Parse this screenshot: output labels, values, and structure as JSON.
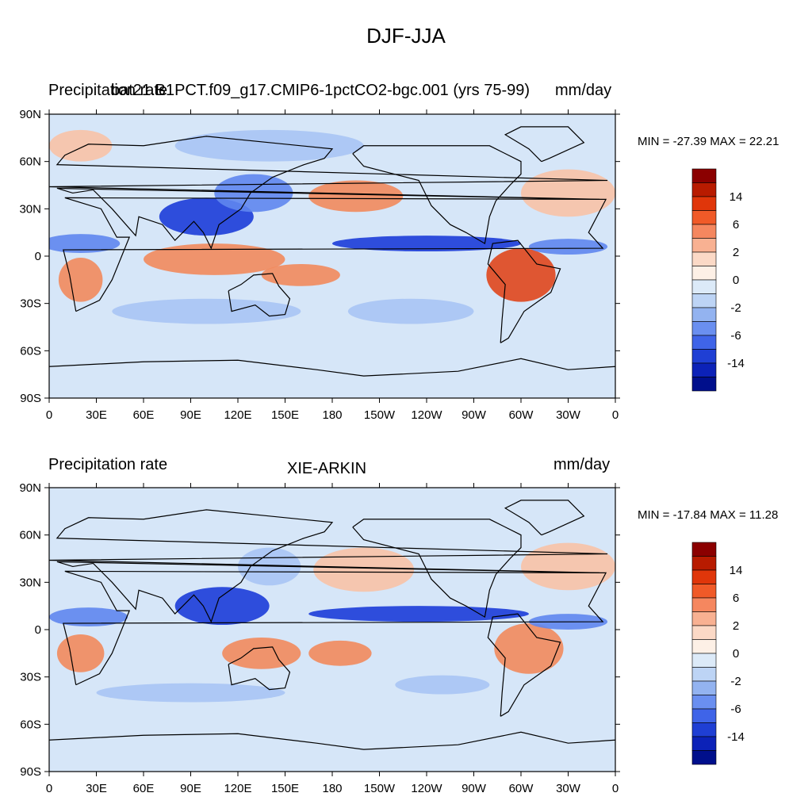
{
  "page": {
    "title": "DJF-JJA"
  },
  "panels": [
    {
      "left_title": "Precipitation rate",
      "center_title": "bat21.B1PCT.f09_g17.CMIP6-1pctCO2-bgc.001 (yrs 75-99)",
      "right_title": "mm/day",
      "minmax": "MIN = -27.39 MAX =  22.21",
      "lat_ticks": [
        "90N",
        "60N",
        "30N",
        "0",
        "30S",
        "60S",
        "90S"
      ],
      "lon_ticks": [
        "0",
        "30E",
        "60E",
        "90E",
        "120E",
        "150E",
        "180",
        "150W",
        "120W",
        "90W",
        "60W",
        "30W",
        "0"
      ]
    },
    {
      "left_title": "Precipitation rate",
      "center_title": "XIE-ARKIN",
      "right_title": "mm/day",
      "minmax": "MIN = -17.84 MAX =  11.28",
      "lat_ticks": [
        "90N",
        "60N",
        "30N",
        "0",
        "30S",
        "60S",
        "90S"
      ],
      "lon_ticks": [
        "0",
        "30E",
        "60E",
        "90E",
        "120E",
        "150E",
        "180",
        "150W",
        "120W",
        "90W",
        "60W",
        "30W",
        "0"
      ]
    }
  ],
  "colorbar": {
    "labels": [
      "14",
      "6",
      "2",
      "0",
      "-2",
      "-6",
      "-14"
    ],
    "colors": [
      "#8b0000",
      "#b81b00",
      "#e0360a",
      "#f05a28",
      "#f5875f",
      "#f8b192",
      "#fbd9c6",
      "#fdf0e6",
      "#dceaf8",
      "#bdd4f5",
      "#93b3f0",
      "#6a8ff0",
      "#3f64e8",
      "#1f3fd4",
      "#0c22b8",
      "#000f8c"
    ]
  },
  "map_colors": {
    "background": "#d6e6f8",
    "wet_light": "#f8c2a6",
    "wet_mid": "#f28a5c",
    "wet_strong": "#e0461c",
    "dry_light": "#a9c4f4",
    "dry_mid": "#5f86ee",
    "dry_strong": "#1c3cd8",
    "coast": "#000000"
  }
}
